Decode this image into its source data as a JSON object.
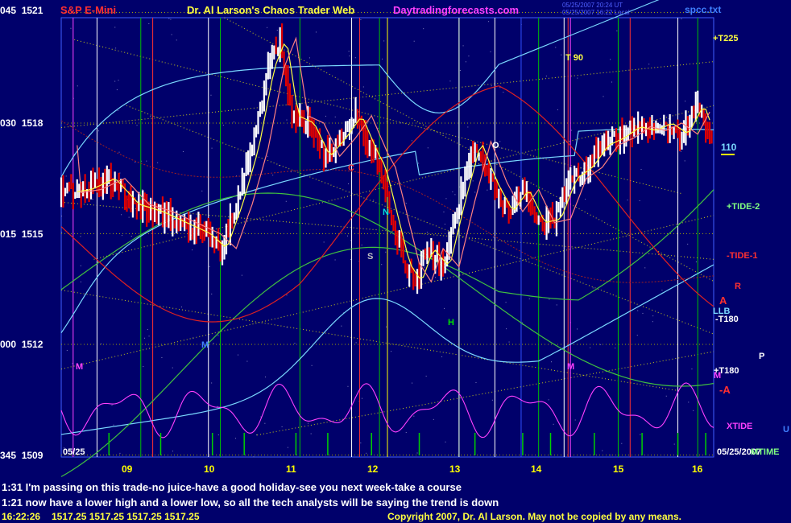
{
  "header": {
    "symbol": "S&P E-Mini",
    "title": "Dr. Al Larson's Chaos Trader Web",
    "site": "Daytradingforecasts.com",
    "stamp1": "05/25/2007 20:24 UT",
    "stamp2": "05/25/2007 16:22 Local",
    "file": "spcc.txt"
  },
  "notes": [
    "1:31 I'm passing on this trade-no juice-have a good holiday-see you next week-take a course",
    "1:21 now have a lower high and a lower low, so all the tech analysts will be saying the trend is down"
  ],
  "status": {
    "time": "16:22:26",
    "quote": "1517.25  1517.25  1517.25  1517.25",
    "copyright": "Copyright 2007, Dr. Al Larson. May not be copied by any means."
  },
  "chart_data": {
    "type": "line",
    "y_ticks": [
      {
        "code": "045",
        "price": 1521
      },
      {
        "code": "030",
        "price": 1518
      },
      {
        "code": "015",
        "price": 1515
      },
      {
        "code": "000",
        "price": 1512
      },
      {
        "code": "345",
        "price": 1509
      }
    ],
    "x_ticks": [
      "09",
      "10",
      "11",
      "12",
      "13",
      "14",
      "15",
      "16"
    ],
    "start_date_label": "05/25",
    "end_date_label": "05/25/2007",
    "right_labels": [
      "+T225",
      "110",
      "+TIDE-2",
      "-TIDE-1",
      "R",
      "A",
      "LLB",
      "-T180",
      "P",
      "+T180",
      "M",
      "-A",
      "XTIDE",
      "U",
      "MTIME"
    ],
    "in_chart_labels": [
      "T 90",
      "M",
      "M",
      "S",
      "H",
      "N",
      "O",
      "C",
      "M"
    ],
    "price_series": {
      "name": "price",
      "x": [
        8.0,
        8.3,
        8.6,
        8.9,
        9.2,
        9.5,
        9.8,
        10.0,
        10.2,
        10.4,
        10.6,
        10.75,
        10.9,
        11.1,
        11.3,
        11.5,
        11.7,
        11.9,
        12.0,
        12.15,
        12.3,
        12.45,
        12.6,
        12.8,
        13.0,
        13.2,
        13.4,
        13.6,
        13.8,
        14.0,
        14.2,
        14.4,
        14.6,
        14.8,
        15.0,
        15.2,
        15.4,
        15.6,
        15.8,
        16.0,
        16.1,
        16.2
      ],
      "y": [
        1516.1,
        1516.2,
        1516.5,
        1515.8,
        1515.6,
        1515.3,
        1515.0,
        1514.6,
        1515.8,
        1517.3,
        1519.5,
        1520.3,
        1518.2,
        1518.0,
        1517.1,
        1517.6,
        1518.2,
        1517.2,
        1516.8,
        1515.5,
        1514.2,
        1513.7,
        1514.6,
        1514.1,
        1515.9,
        1517.5,
        1516.4,
        1515.6,
        1516.2,
        1515.3,
        1515.4,
        1516.5,
        1516.8,
        1517.4,
        1517.6,
        1517.9,
        1517.8,
        1518.0,
        1517.7,
        1518.5,
        1517.9,
        1517.4
      ]
    }
  },
  "colors": {
    "background": "#00006b",
    "up_bar": "#ffffff",
    "down_bar": "#e00000",
    "grid_vertical": "#00c000",
    "dotted": "#ffff00",
    "tide_cyan": "#7ad8ff",
    "xtide": "#ff40ff",
    "mtime": "#00d000"
  }
}
